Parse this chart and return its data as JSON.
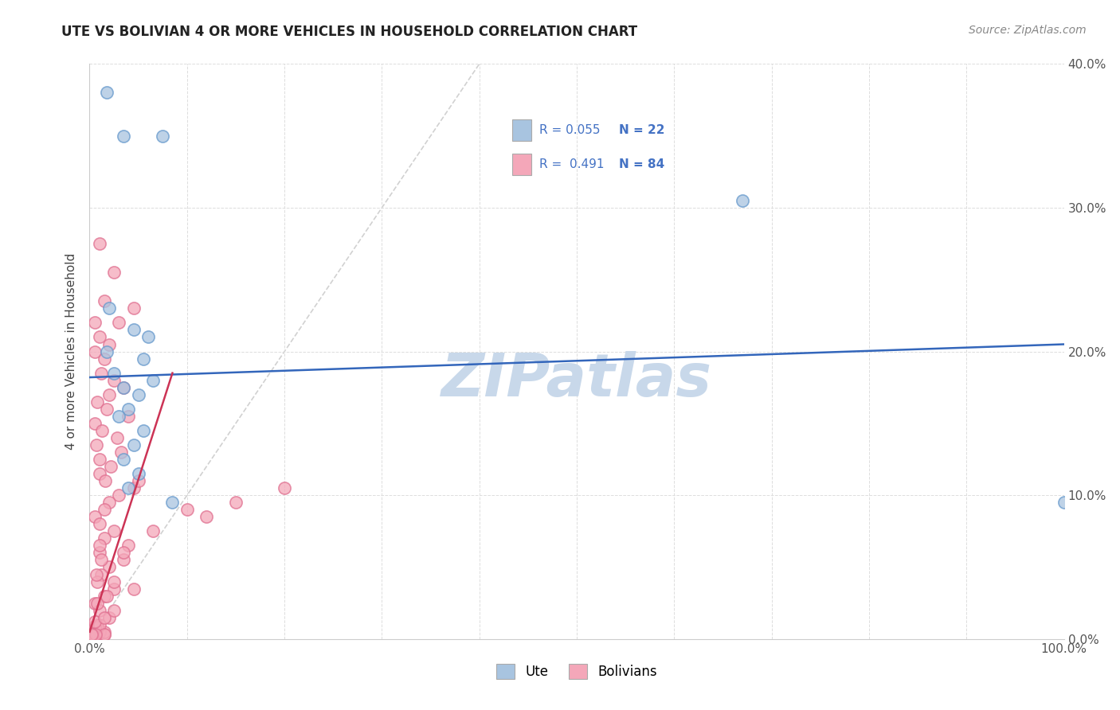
{
  "title": "UTE VS BOLIVIAN 4 OR MORE VEHICLES IN HOUSEHOLD CORRELATION CHART",
  "source": "Source: ZipAtlas.com",
  "ylabel": "4 or more Vehicles in Household",
  "xlim": [
    0,
    100
  ],
  "ylim": [
    0,
    40
  ],
  "xtick_positions": [
    0,
    10,
    20,
    30,
    40,
    50,
    60,
    70,
    80,
    90,
    100
  ],
  "xtick_labels_sparse": {
    "0": "0.0%",
    "100": "100.0%"
  },
  "ytick_positions": [
    0,
    10,
    20,
    30,
    40
  ],
  "ytick_labels": [
    "0.0%",
    "10.0%",
    "20.0%",
    "30.0%",
    "40.0%"
  ],
  "legend_labels": [
    "Ute",
    "Bolivians"
  ],
  "ute_R": 0.055,
  "ute_N": 22,
  "bolivian_R": 0.491,
  "bolivian_N": 84,
  "ute_color": "#a8c4e0",
  "bolivian_color": "#f4a7b9",
  "ute_edge_color": "#6699cc",
  "bolivian_edge_color": "#e07090",
  "ute_line_color": "#3366bb",
  "bolivian_line_color": "#cc3355",
  "ref_line_color": "#cccccc",
  "grid_color": "#dddddd",
  "watermark": "ZIPatlas",
  "watermark_color": "#c8d8ea",
  "ute_line_x": [
    0,
    100
  ],
  "ute_line_y": [
    18.2,
    20.5
  ],
  "bolivian_line_x": [
    0,
    8.5
  ],
  "bolivian_line_y": [
    0.5,
    18.5
  ],
  "ref_line_x": [
    0,
    40
  ],
  "ref_line_y": [
    0,
    40
  ],
  "ute_points": [
    [
      1.8,
      38.0
    ],
    [
      3.5,
      35.0
    ],
    [
      7.5,
      35.0
    ],
    [
      2.0,
      23.0
    ],
    [
      4.5,
      21.5
    ],
    [
      6.0,
      21.0
    ],
    [
      1.8,
      20.0
    ],
    [
      5.5,
      19.5
    ],
    [
      2.5,
      18.5
    ],
    [
      6.5,
      18.0
    ],
    [
      3.5,
      17.5
    ],
    [
      5.0,
      17.0
    ],
    [
      4.0,
      16.0
    ],
    [
      3.0,
      15.5
    ],
    [
      5.5,
      14.5
    ],
    [
      4.5,
      13.5
    ],
    [
      3.5,
      12.5
    ],
    [
      5.0,
      11.5
    ],
    [
      4.0,
      10.5
    ],
    [
      8.5,
      9.5
    ],
    [
      100.0,
      9.5
    ],
    [
      67.0,
      30.5
    ]
  ],
  "bolivian_points": [
    [
      1.0,
      27.5
    ],
    [
      2.5,
      25.5
    ],
    [
      1.5,
      23.5
    ],
    [
      4.5,
      23.0
    ],
    [
      0.5,
      22.0
    ],
    [
      3.0,
      22.0
    ],
    [
      1.0,
      21.0
    ],
    [
      2.0,
      20.5
    ],
    [
      0.5,
      20.0
    ],
    [
      1.5,
      19.5
    ],
    [
      1.2,
      18.5
    ],
    [
      2.5,
      18.0
    ],
    [
      3.5,
      17.5
    ],
    [
      2.0,
      17.0
    ],
    [
      0.8,
      16.5
    ],
    [
      1.8,
      16.0
    ],
    [
      4.0,
      15.5
    ],
    [
      0.5,
      15.0
    ],
    [
      1.3,
      14.5
    ],
    [
      2.8,
      14.0
    ],
    [
      0.7,
      13.5
    ],
    [
      3.2,
      13.0
    ],
    [
      1.0,
      12.5
    ],
    [
      2.2,
      12.0
    ],
    [
      1.0,
      11.5
    ],
    [
      1.6,
      11.0
    ],
    [
      4.5,
      10.5
    ],
    [
      3.0,
      10.0
    ],
    [
      2.0,
      9.5
    ],
    [
      1.5,
      9.0
    ],
    [
      0.5,
      8.5
    ],
    [
      1.0,
      8.0
    ],
    [
      2.5,
      7.5
    ],
    [
      1.5,
      7.0
    ],
    [
      4.0,
      6.5
    ],
    [
      1.0,
      6.0
    ],
    [
      3.5,
      5.5
    ],
    [
      2.0,
      5.0
    ],
    [
      1.2,
      4.5
    ],
    [
      0.8,
      4.0
    ],
    [
      2.5,
      3.5
    ],
    [
      1.5,
      3.0
    ],
    [
      0.5,
      2.5
    ],
    [
      1.0,
      2.0
    ],
    [
      2.0,
      1.5
    ],
    [
      0.8,
      1.0
    ],
    [
      0.3,
      0.8
    ],
    [
      0.5,
      0.5
    ],
    [
      1.0,
      0.5
    ],
    [
      0.2,
      0.3
    ],
    [
      0.5,
      0.3
    ],
    [
      0.3,
      0.3
    ],
    [
      0.8,
      0.3
    ],
    [
      1.5,
      0.3
    ],
    [
      0.4,
      0.3
    ],
    [
      0.7,
      0.3
    ],
    [
      1.0,
      0.5
    ],
    [
      0.5,
      0.5
    ],
    [
      1.5,
      0.5
    ],
    [
      0.3,
      0.5
    ],
    [
      0.8,
      0.8
    ],
    [
      0.5,
      0.8
    ],
    [
      1.0,
      1.0
    ],
    [
      0.5,
      1.2
    ],
    [
      1.5,
      1.5
    ],
    [
      2.5,
      2.0
    ],
    [
      0.8,
      2.5
    ],
    [
      1.8,
      3.0
    ],
    [
      4.5,
      3.5
    ],
    [
      2.5,
      4.0
    ],
    [
      0.7,
      4.5
    ],
    [
      1.2,
      5.5
    ],
    [
      3.5,
      6.0
    ],
    [
      1.0,
      6.5
    ],
    [
      6.5,
      7.5
    ],
    [
      12.0,
      8.5
    ],
    [
      10.0,
      9.0
    ],
    [
      15.0,
      9.5
    ],
    [
      20.0,
      10.5
    ],
    [
      5.0,
      11.0
    ],
    [
      1.5,
      0.3
    ],
    [
      0.3,
      0.3
    ],
    [
      0.6,
      0.3
    ],
    [
      0.2,
      0.3
    ]
  ]
}
